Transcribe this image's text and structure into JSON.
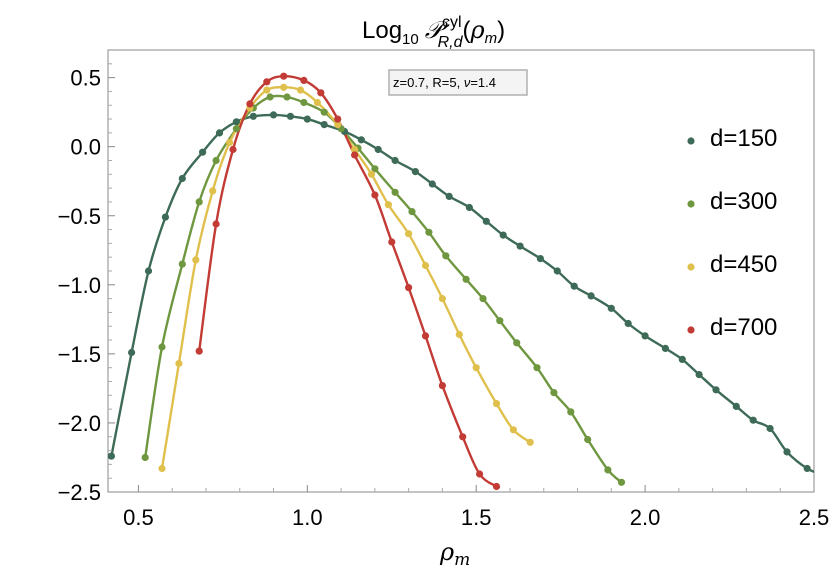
{
  "chart_data": {
    "type": "scatter",
    "title": {
      "prefix": "Log",
      "sub10": "10",
      "symbol": "𝒫",
      "sup": "cyl",
      "sub": "R,d",
      "arg_open": "(",
      "arg_var": "ρ",
      "arg_sub": "m",
      "arg_close": ")"
    },
    "xlabel": {
      "var": "ρ",
      "sub": "m"
    },
    "ylabel": "",
    "annotation": {
      "pre": "z=0.7, R=5, ",
      "var": "ν",
      "post": "=1.4"
    },
    "xlim": [
      0.41,
      2.5
    ],
    "ylim": [
      -2.5,
      0.7
    ],
    "x_ticks": [
      0.5,
      1.0,
      1.5,
      2.0,
      2.5
    ],
    "x_tick_labels": [
      "0.5",
      "1.0",
      "1.5",
      "2.0",
      "2.5"
    ],
    "y_ticks": [
      0.5,
      0.0,
      -0.5,
      -1.0,
      -1.5,
      -2.0,
      -2.5
    ],
    "y_tick_labels": [
      "0.5",
      "0.0",
      "−0.5",
      "−1.0",
      "−1.5",
      "−2.0",
      "−2.5"
    ],
    "grid": false,
    "legend_position": "right",
    "series": [
      {
        "name": "d=150",
        "color": "#3d6b57",
        "points": [
          [
            0.42,
            -2.24
          ],
          [
            0.48,
            -1.49
          ],
          [
            0.53,
            -0.9
          ],
          [
            0.58,
            -0.51
          ],
          [
            0.63,
            -0.23
          ],
          [
            0.69,
            -0.04
          ],
          [
            0.74,
            0.1
          ],
          [
            0.79,
            0.18
          ],
          [
            0.84,
            0.22
          ],
          [
            0.9,
            0.23
          ],
          [
            0.95,
            0.22
          ],
          [
            1.0,
            0.2
          ],
          [
            1.05,
            0.16
          ],
          [
            1.11,
            0.11
          ],
          [
            1.16,
            0.05
          ],
          [
            1.21,
            -0.02
          ],
          [
            1.26,
            -0.1
          ],
          [
            1.32,
            -0.18
          ],
          [
            1.37,
            -0.27
          ],
          [
            1.42,
            -0.36
          ],
          [
            1.48,
            -0.44
          ],
          [
            1.53,
            -0.54
          ],
          [
            1.58,
            -0.64
          ],
          [
            1.63,
            -0.72
          ],
          [
            1.69,
            -0.81
          ],
          [
            1.74,
            -0.9
          ],
          [
            1.79,
            -1.01
          ],
          [
            1.84,
            -1.08
          ],
          [
            1.9,
            -1.17
          ],
          [
            1.95,
            -1.28
          ],
          [
            2.0,
            -1.37
          ],
          [
            2.06,
            -1.46
          ],
          [
            2.11,
            -1.54
          ],
          [
            2.16,
            -1.65
          ],
          [
            2.21,
            -1.76
          ],
          [
            2.27,
            -1.88
          ],
          [
            2.32,
            -1.98
          ],
          [
            2.37,
            -2.04
          ],
          [
            2.42,
            -2.21
          ],
          [
            2.48,
            -2.33
          ],
          [
            2.53,
            -2.38
          ]
        ]
      },
      {
        "name": "d=300",
        "color": "#6f9740",
        "points": [
          [
            0.52,
            -2.25
          ],
          [
            0.57,
            -1.45
          ],
          [
            0.63,
            -0.85
          ],
          [
            0.68,
            -0.4
          ],
          [
            0.73,
            -0.1
          ],
          [
            0.79,
            0.13
          ],
          [
            0.84,
            0.28
          ],
          [
            0.89,
            0.36
          ],
          [
            0.94,
            0.36
          ],
          [
            0.99,
            0.32
          ],
          [
            1.05,
            0.25
          ],
          [
            1.1,
            0.13
          ],
          [
            1.15,
            -0.01
          ],
          [
            1.2,
            -0.16
          ],
          [
            1.26,
            -0.33
          ],
          [
            1.31,
            -0.47
          ],
          [
            1.36,
            -0.62
          ],
          [
            1.41,
            -0.79
          ],
          [
            1.47,
            -0.96
          ],
          [
            1.52,
            -1.1
          ],
          [
            1.57,
            -1.26
          ],
          [
            1.62,
            -1.42
          ],
          [
            1.68,
            -1.6
          ],
          [
            1.73,
            -1.78
          ],
          [
            1.78,
            -1.92
          ],
          [
            1.83,
            -2.12
          ],
          [
            1.89,
            -2.34
          ],
          [
            1.93,
            -2.43
          ]
        ]
      },
      {
        "name": "d=450",
        "color": "#e0c04d",
        "points": [
          [
            0.57,
            -2.33
          ],
          [
            0.62,
            -1.57
          ],
          [
            0.67,
            -0.82
          ],
          [
            0.72,
            -0.32
          ],
          [
            0.77,
            0.03
          ],
          [
            0.83,
            0.28
          ],
          [
            0.88,
            0.41
          ],
          [
            0.93,
            0.43
          ],
          [
            0.98,
            0.41
          ],
          [
            1.03,
            0.32
          ],
          [
            1.09,
            0.16
          ],
          [
            1.14,
            -0.02
          ],
          [
            1.19,
            -0.2
          ],
          [
            1.24,
            -0.42
          ],
          [
            1.3,
            -0.63
          ],
          [
            1.35,
            -0.86
          ],
          [
            1.4,
            -1.1
          ],
          [
            1.45,
            -1.36
          ],
          [
            1.5,
            -1.6
          ],
          [
            1.56,
            -1.86
          ],
          [
            1.61,
            -2.05
          ],
          [
            1.66,
            -2.14
          ]
        ]
      },
      {
        "name": "d=700",
        "color": "#c23b35",
        "points": [
          [
            0.68,
            -1.48
          ],
          [
            0.73,
            -0.56
          ],
          [
            0.78,
            -0.02
          ],
          [
            0.83,
            0.31
          ],
          [
            0.88,
            0.47
          ],
          [
            0.93,
            0.51
          ],
          [
            0.99,
            0.48
          ],
          [
            1.04,
            0.39
          ],
          [
            1.09,
            0.2
          ],
          [
            1.14,
            -0.06
          ],
          [
            1.2,
            -0.35
          ],
          [
            1.25,
            -0.69
          ],
          [
            1.3,
            -1.02
          ],
          [
            1.35,
            -1.37
          ],
          [
            1.4,
            -1.73
          ],
          [
            1.46,
            -2.1
          ],
          [
            1.51,
            -2.37
          ],
          [
            1.56,
            -2.46
          ]
        ]
      }
    ]
  }
}
